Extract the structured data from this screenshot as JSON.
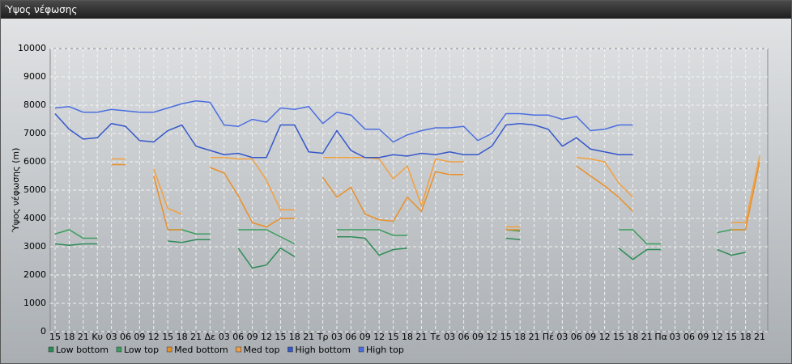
{
  "chart_data": {
    "type": "line",
    "title": "Ύψος νέφωσης",
    "y_label": "Ύψος νέφωσης (m)",
    "categories": [
      "15",
      "18",
      "21",
      "Κυ",
      "03",
      "06",
      "09",
      "12",
      "15",
      "18",
      "21",
      "Δε",
      "03",
      "06",
      "09",
      "12",
      "15",
      "18",
      "21",
      "Τρ",
      "03",
      "06",
      "09",
      "12",
      "15",
      "18",
      "21",
      "Τε",
      "03",
      "06",
      "09",
      "12",
      "15",
      "18",
      "21",
      "Πέ",
      "03",
      "06",
      "09",
      "12",
      "15",
      "18",
      "21",
      "Πα",
      "03",
      "06",
      "09",
      "12",
      "15",
      "18",
      "21"
    ],
    "ylim": [
      0,
      10000
    ],
    "yticks": [
      0,
      1000,
      2000,
      3000,
      4000,
      5000,
      6000,
      7000,
      8000,
      9000,
      10000
    ],
    "grid": true,
    "series": [
      {
        "name": "Low bottom",
        "color": "#2e8b57",
        "values": [
          3100,
          3050,
          3100,
          3100,
          null,
          null,
          null,
          null,
          3200,
          3150,
          3250,
          3250,
          null,
          2950,
          2250,
          2350,
          2950,
          2650,
          null,
          null,
          3350,
          3350,
          3300,
          2700,
          2900,
          2950,
          null,
          null,
          null,
          null,
          null,
          null,
          3300,
          3250,
          null,
          null,
          null,
          null,
          null,
          null,
          2950,
          2550,
          2900,
          2900,
          null,
          null,
          null,
          2900,
          2700,
          2800,
          null
        ]
      },
      {
        "name": "Low top",
        "color": "#3a9d5d",
        "values": [
          3450,
          3600,
          3300,
          3300,
          null,
          null,
          null,
          null,
          3600,
          3600,
          3450,
          3450,
          null,
          3600,
          3600,
          3600,
          3350,
          3100,
          null,
          null,
          3600,
          3600,
          3600,
          3600,
          3400,
          3400,
          null,
          null,
          null,
          null,
          null,
          null,
          3600,
          3550,
          null,
          null,
          null,
          null,
          null,
          null,
          3600,
          3600,
          3100,
          3100,
          null,
          null,
          null,
          3500,
          3600,
          3600,
          null
        ]
      },
      {
        "name": "Med bottom",
        "color": "#e8902a",
        "values": [
          null,
          null,
          null,
          null,
          5900,
          5900,
          null,
          5500,
          3600,
          3600,
          null,
          5800,
          5600,
          4800,
          3850,
          3700,
          4000,
          4000,
          null,
          5450,
          4750,
          5100,
          4150,
          3950,
          3900,
          4750,
          4250,
          5650,
          5550,
          5550,
          null,
          null,
          3600,
          3600,
          null,
          null,
          null,
          5850,
          5500,
          5150,
          4750,
          4250,
          null,
          null,
          null,
          null,
          null,
          null,
          3600,
          3600,
          6000
        ]
      },
      {
        "name": "Med top",
        "color": "#f2a040",
        "values": [
          null,
          null,
          null,
          null,
          6100,
          6100,
          null,
          5750,
          4350,
          4150,
          null,
          6150,
          6150,
          6100,
          6100,
          5350,
          4300,
          4300,
          null,
          6150,
          6150,
          6150,
          6150,
          6100,
          5400,
          5850,
          4450,
          6100,
          6000,
          6000,
          null,
          null,
          3700,
          3700,
          null,
          null,
          null,
          6150,
          6100,
          6000,
          5250,
          4750,
          null,
          null,
          null,
          null,
          null,
          null,
          3850,
          3850,
          6200
        ]
      },
      {
        "name": "High bottom",
        "color": "#3457c9",
        "values": [
          7700,
          7150,
          6800,
          6850,
          7350,
          7250,
          6750,
          6700,
          7100,
          7300,
          6550,
          6400,
          6250,
          6300,
          6150,
          6150,
          7300,
          7300,
          6350,
          6300,
          7100,
          6400,
          6150,
          6150,
          6250,
          6200,
          6300,
          6250,
          6350,
          6250,
          6250,
          6550,
          7300,
          7350,
          7300,
          7150,
          6550,
          6850,
          6450,
          6350,
          6250,
          6250,
          null,
          null,
          null,
          null,
          null,
          null,
          null,
          null,
          null
        ]
      },
      {
        "name": "High top",
        "color": "#4a6ee0",
        "values": [
          7900,
          7950,
          7750,
          7750,
          7850,
          7800,
          7750,
          7750,
          7900,
          8050,
          8150,
          8100,
          7300,
          7250,
          7500,
          7400,
          7900,
          7850,
          7950,
          7350,
          7750,
          7650,
          7150,
          7150,
          6700,
          6950,
          7100,
          7200,
          7200,
          7250,
          6750,
          7000,
          7700,
          7700,
          7650,
          7650,
          7500,
          7600,
          7100,
          7150,
          7300,
          7300,
          null,
          null,
          null,
          null,
          null,
          null,
          null,
          null,
          null
        ]
      }
    ]
  }
}
